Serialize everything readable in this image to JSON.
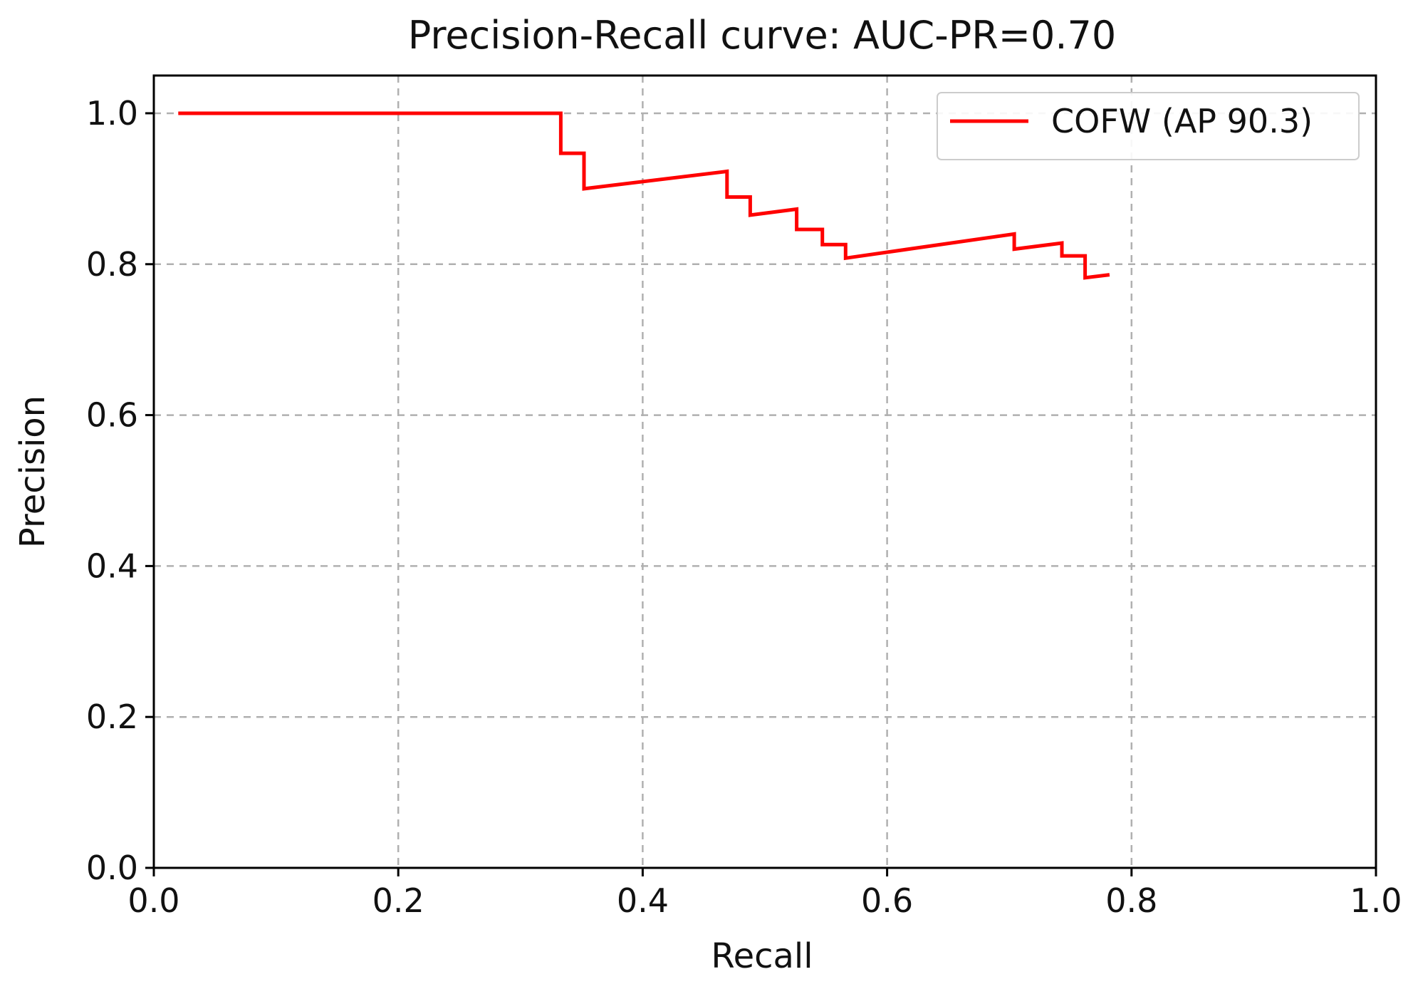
{
  "chart_data": {
    "type": "line",
    "title": "Precision-Recall curve: AUC-PR=0.70",
    "xlabel": "Recall",
    "ylabel": "Precision",
    "xlim": [
      0.0,
      1.0
    ],
    "ylim": [
      0.0,
      1.05
    ],
    "xticks": [
      "0.0",
      "0.2",
      "0.4",
      "0.6",
      "0.8",
      "1.0"
    ],
    "yticks": [
      "0.0",
      "0.2",
      "0.4",
      "0.6",
      "0.8",
      "1.0"
    ],
    "grid": true,
    "legend_position": "top-right",
    "series": [
      {
        "name": "COFW (AP 90.3)",
        "color": "#ff0000",
        "x": [
          0.02,
          0.333,
          0.333,
          0.352,
          0.352,
          0.469,
          0.469,
          0.488,
          0.488,
          0.526,
          0.526,
          0.547,
          0.547,
          0.566,
          0.566,
          0.704,
          0.704,
          0.743,
          0.743,
          0.762,
          0.762,
          0.782
        ],
        "y": [
          1.0,
          1.0,
          0.947,
          0.947,
          0.9,
          0.923,
          0.889,
          0.889,
          0.865,
          0.873,
          0.846,
          0.846,
          0.826,
          0.826,
          0.808,
          0.84,
          0.82,
          0.828,
          0.811,
          0.811,
          0.782,
          0.786
        ]
      }
    ]
  }
}
